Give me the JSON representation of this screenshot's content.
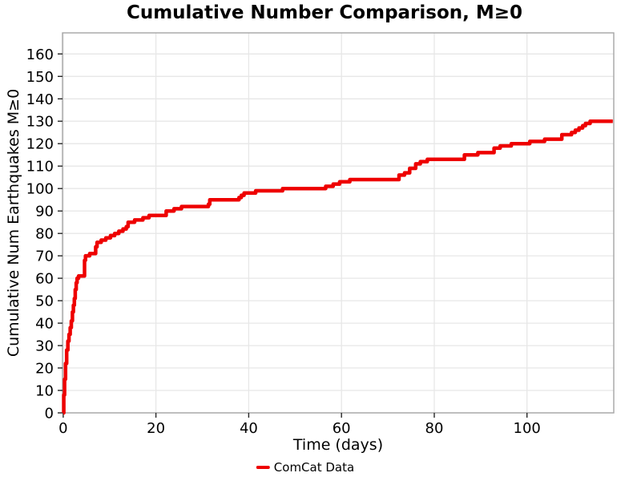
{
  "title": "Cumulative Number Comparison, M≥0",
  "colors": {
    "background": "#ffffff",
    "grid": "#e7e7e7",
    "plot_border": "#a6a6a6",
    "tick": "#262626",
    "text": "#000000",
    "line": "#ee0000"
  },
  "legend": {
    "marker": "red-line",
    "label": "ComCat Data"
  },
  "chart_data": {
    "type": "line",
    "title": "Cumulative Number Comparison, M≥0",
    "xlabel": "Time (days)",
    "ylabel": "Cumulative Num Earthquakes M≥0",
    "x_ticks": [
      0,
      20,
      40,
      60,
      80,
      100
    ],
    "y_ticks": [
      0,
      10,
      20,
      30,
      40,
      50,
      60,
      70,
      80,
      90,
      100,
      110,
      120,
      130,
      140,
      150,
      160
    ],
    "xlim": [
      -0.15,
      118.7
    ],
    "ylim": [
      0,
      169.4
    ],
    "grid": true,
    "legend_position": "bottom-center",
    "series": [
      {
        "name": "ComCat Data",
        "color": "#ee0000",
        "step_mode": "post",
        "x": [
          0,
          0.12,
          0.3,
          0.5,
          0.75,
          1.0,
          1.25,
          1.5,
          1.75,
          2.0,
          2.2,
          2.4,
          2.6,
          2.8,
          3.0,
          3.3,
          4.6,
          4.8,
          5.7,
          7.0,
          7.3,
          8.2,
          9.2,
          10.2,
          11.1,
          12.0,
          12.9,
          13.6,
          14.0,
          15.4,
          17.2,
          18.5,
          22.2,
          23.9,
          25.5,
          31.3,
          31.6,
          37.9,
          38.4,
          39.0,
          41.5,
          47.3,
          56.6,
          58.2,
          59.6,
          61.8,
          72.4,
          73.6,
          74.7,
          76.0,
          77.0,
          78.5,
          86.5,
          89.4,
          92.9,
          94.2,
          96.6,
          100.6,
          103.8,
          107.5,
          109.6,
          110.4,
          111.2,
          112.0,
          112.6,
          113.6,
          118.5
        ],
        "y": [
          0,
          8,
          15,
          22,
          28,
          32,
          35,
          38,
          41,
          45,
          48,
          51,
          55,
          58,
          60,
          61,
          68,
          70,
          71,
          74,
          76,
          77,
          78,
          79,
          80,
          81,
          82,
          83,
          85,
          86,
          87,
          88,
          90,
          91,
          92,
          93,
          95,
          96,
          97,
          98,
          99,
          100,
          101,
          102,
          103,
          104,
          106,
          107,
          109,
          111,
          112,
          113,
          115,
          116,
          118,
          119,
          120,
          121,
          122,
          124,
          125,
          126,
          127,
          128,
          129,
          130,
          130
        ]
      }
    ]
  }
}
